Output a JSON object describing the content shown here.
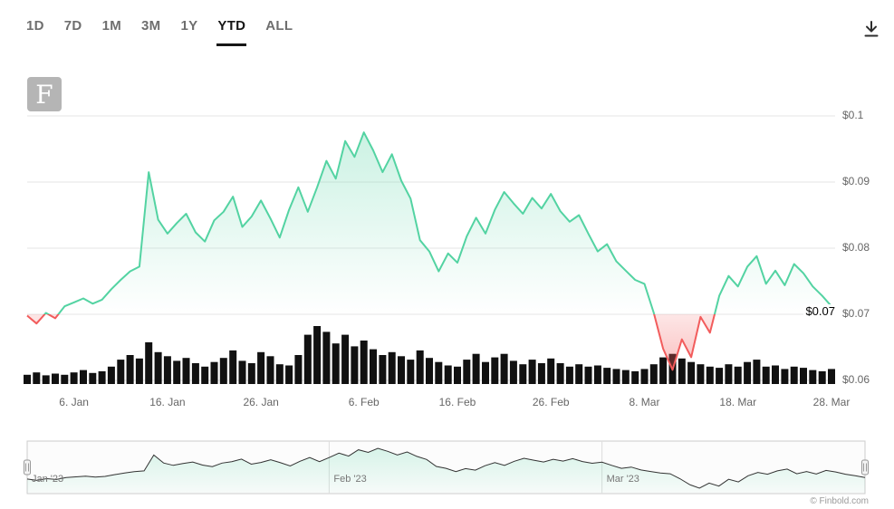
{
  "toolbar": {
    "ranges": [
      {
        "label": "1D",
        "selected": false
      },
      {
        "label": "7D",
        "selected": false
      },
      {
        "label": "1M",
        "selected": false
      },
      {
        "label": "3M",
        "selected": false
      },
      {
        "label": "1Y",
        "selected": false
      },
      {
        "label": "YTD",
        "selected": true
      },
      {
        "label": "ALL",
        "selected": false
      }
    ]
  },
  "icons": {
    "download": "download-arrow-to-line"
  },
  "watermark": {
    "letter": "F"
  },
  "credit": {
    "text": "© Finbold.com"
  },
  "chart_data": {
    "type": "area",
    "title": "",
    "x_start": "2023-01-01",
    "x_interval": "1 day",
    "threshold": 0.07,
    "ylim": [
      0.059,
      0.105
    ],
    "grid": "horizontal",
    "legend": "none",
    "current_price_label": "$0.07",
    "y_ticks": [
      {
        "label": "$0.06",
        "value": 0.06
      },
      {
        "label": "$0.07",
        "value": 0.07
      },
      {
        "label": "$0.08",
        "value": 0.08
      },
      {
        "label": "$0.09",
        "value": 0.09
      },
      {
        "label": "$0.1",
        "value": 0.1
      }
    ],
    "x_ticks": [
      {
        "label": "6. Jan",
        "day": 5
      },
      {
        "label": "16. Jan",
        "day": 15
      },
      {
        "label": "26. Jan",
        "day": 25
      },
      {
        "label": "6. Feb",
        "day": 36
      },
      {
        "label": "16. Feb",
        "day": 46
      },
      {
        "label": "26. Feb",
        "day": 56
      },
      {
        "label": "8. Mar",
        "day": 66
      },
      {
        "label": "18. Mar",
        "day": 76
      },
      {
        "label": "28. Mar",
        "day": 86
      }
    ],
    "prices": [
      0.0698,
      0.0686,
      0.0702,
      0.0694,
      0.0712,
      0.0718,
      0.0724,
      0.0716,
      0.0722,
      0.0738,
      0.0752,
      0.0765,
      0.0772,
      0.0915,
      0.0843,
      0.0822,
      0.0838,
      0.0852,
      0.0824,
      0.081,
      0.0842,
      0.0855,
      0.0878,
      0.0832,
      0.0848,
      0.0872,
      0.0845,
      0.0816,
      0.0858,
      0.0892,
      0.0855,
      0.0892,
      0.0932,
      0.0905,
      0.0962,
      0.0938,
      0.0975,
      0.0948,
      0.0915,
      0.0942,
      0.0902,
      0.0875,
      0.0812,
      0.0795,
      0.0765,
      0.0792,
      0.0778,
      0.0818,
      0.0846,
      0.0822,
      0.0858,
      0.0885,
      0.0868,
      0.0852,
      0.0876,
      0.086,
      0.0882,
      0.0856,
      0.084,
      0.085,
      0.0822,
      0.0795,
      0.0806,
      0.078,
      0.0766,
      0.0752,
      0.0746,
      0.0702,
      0.0648,
      0.0616,
      0.0662,
      0.0635,
      0.0696,
      0.0672,
      0.0728,
      0.0758,
      0.0742,
      0.0772,
      0.0788,
      0.0746,
      0.0766,
      0.0744,
      0.0776,
      0.0762,
      0.0742,
      0.0728,
      0.0712
    ],
    "volumes_relative": [
      0.16,
      0.2,
      0.15,
      0.18,
      0.16,
      0.2,
      0.24,
      0.19,
      0.22,
      0.3,
      0.42,
      0.5,
      0.44,
      0.72,
      0.55,
      0.48,
      0.4,
      0.45,
      0.36,
      0.3,
      0.38,
      0.45,
      0.58,
      0.4,
      0.36,
      0.55,
      0.48,
      0.34,
      0.32,
      0.5,
      0.85,
      1.0,
      0.9,
      0.7,
      0.85,
      0.65,
      0.75,
      0.6,
      0.5,
      0.55,
      0.48,
      0.42,
      0.58,
      0.45,
      0.38,
      0.32,
      0.3,
      0.42,
      0.52,
      0.38,
      0.46,
      0.52,
      0.4,
      0.34,
      0.42,
      0.36,
      0.44,
      0.36,
      0.3,
      0.34,
      0.3,
      0.32,
      0.28,
      0.26,
      0.24,
      0.22,
      0.26,
      0.34,
      0.46,
      0.52,
      0.44,
      0.38,
      0.34,
      0.3,
      0.28,
      0.34,
      0.3,
      0.38,
      0.42,
      0.3,
      0.32,
      0.26,
      0.3,
      0.28,
      0.24,
      0.22,
      0.26
    ],
    "colors": {
      "positive": "#53d3a2",
      "negative": "#f25c5c",
      "volume": "#111111",
      "gridline": "#e6e6e6",
      "axis_text": "#666666"
    }
  },
  "navigator": {
    "months": [
      {
        "label": "Jan '23",
        "day": 0
      },
      {
        "label": "Feb '23",
        "day": 31
      },
      {
        "label": "Mar '23",
        "day": 59
      }
    ]
  }
}
